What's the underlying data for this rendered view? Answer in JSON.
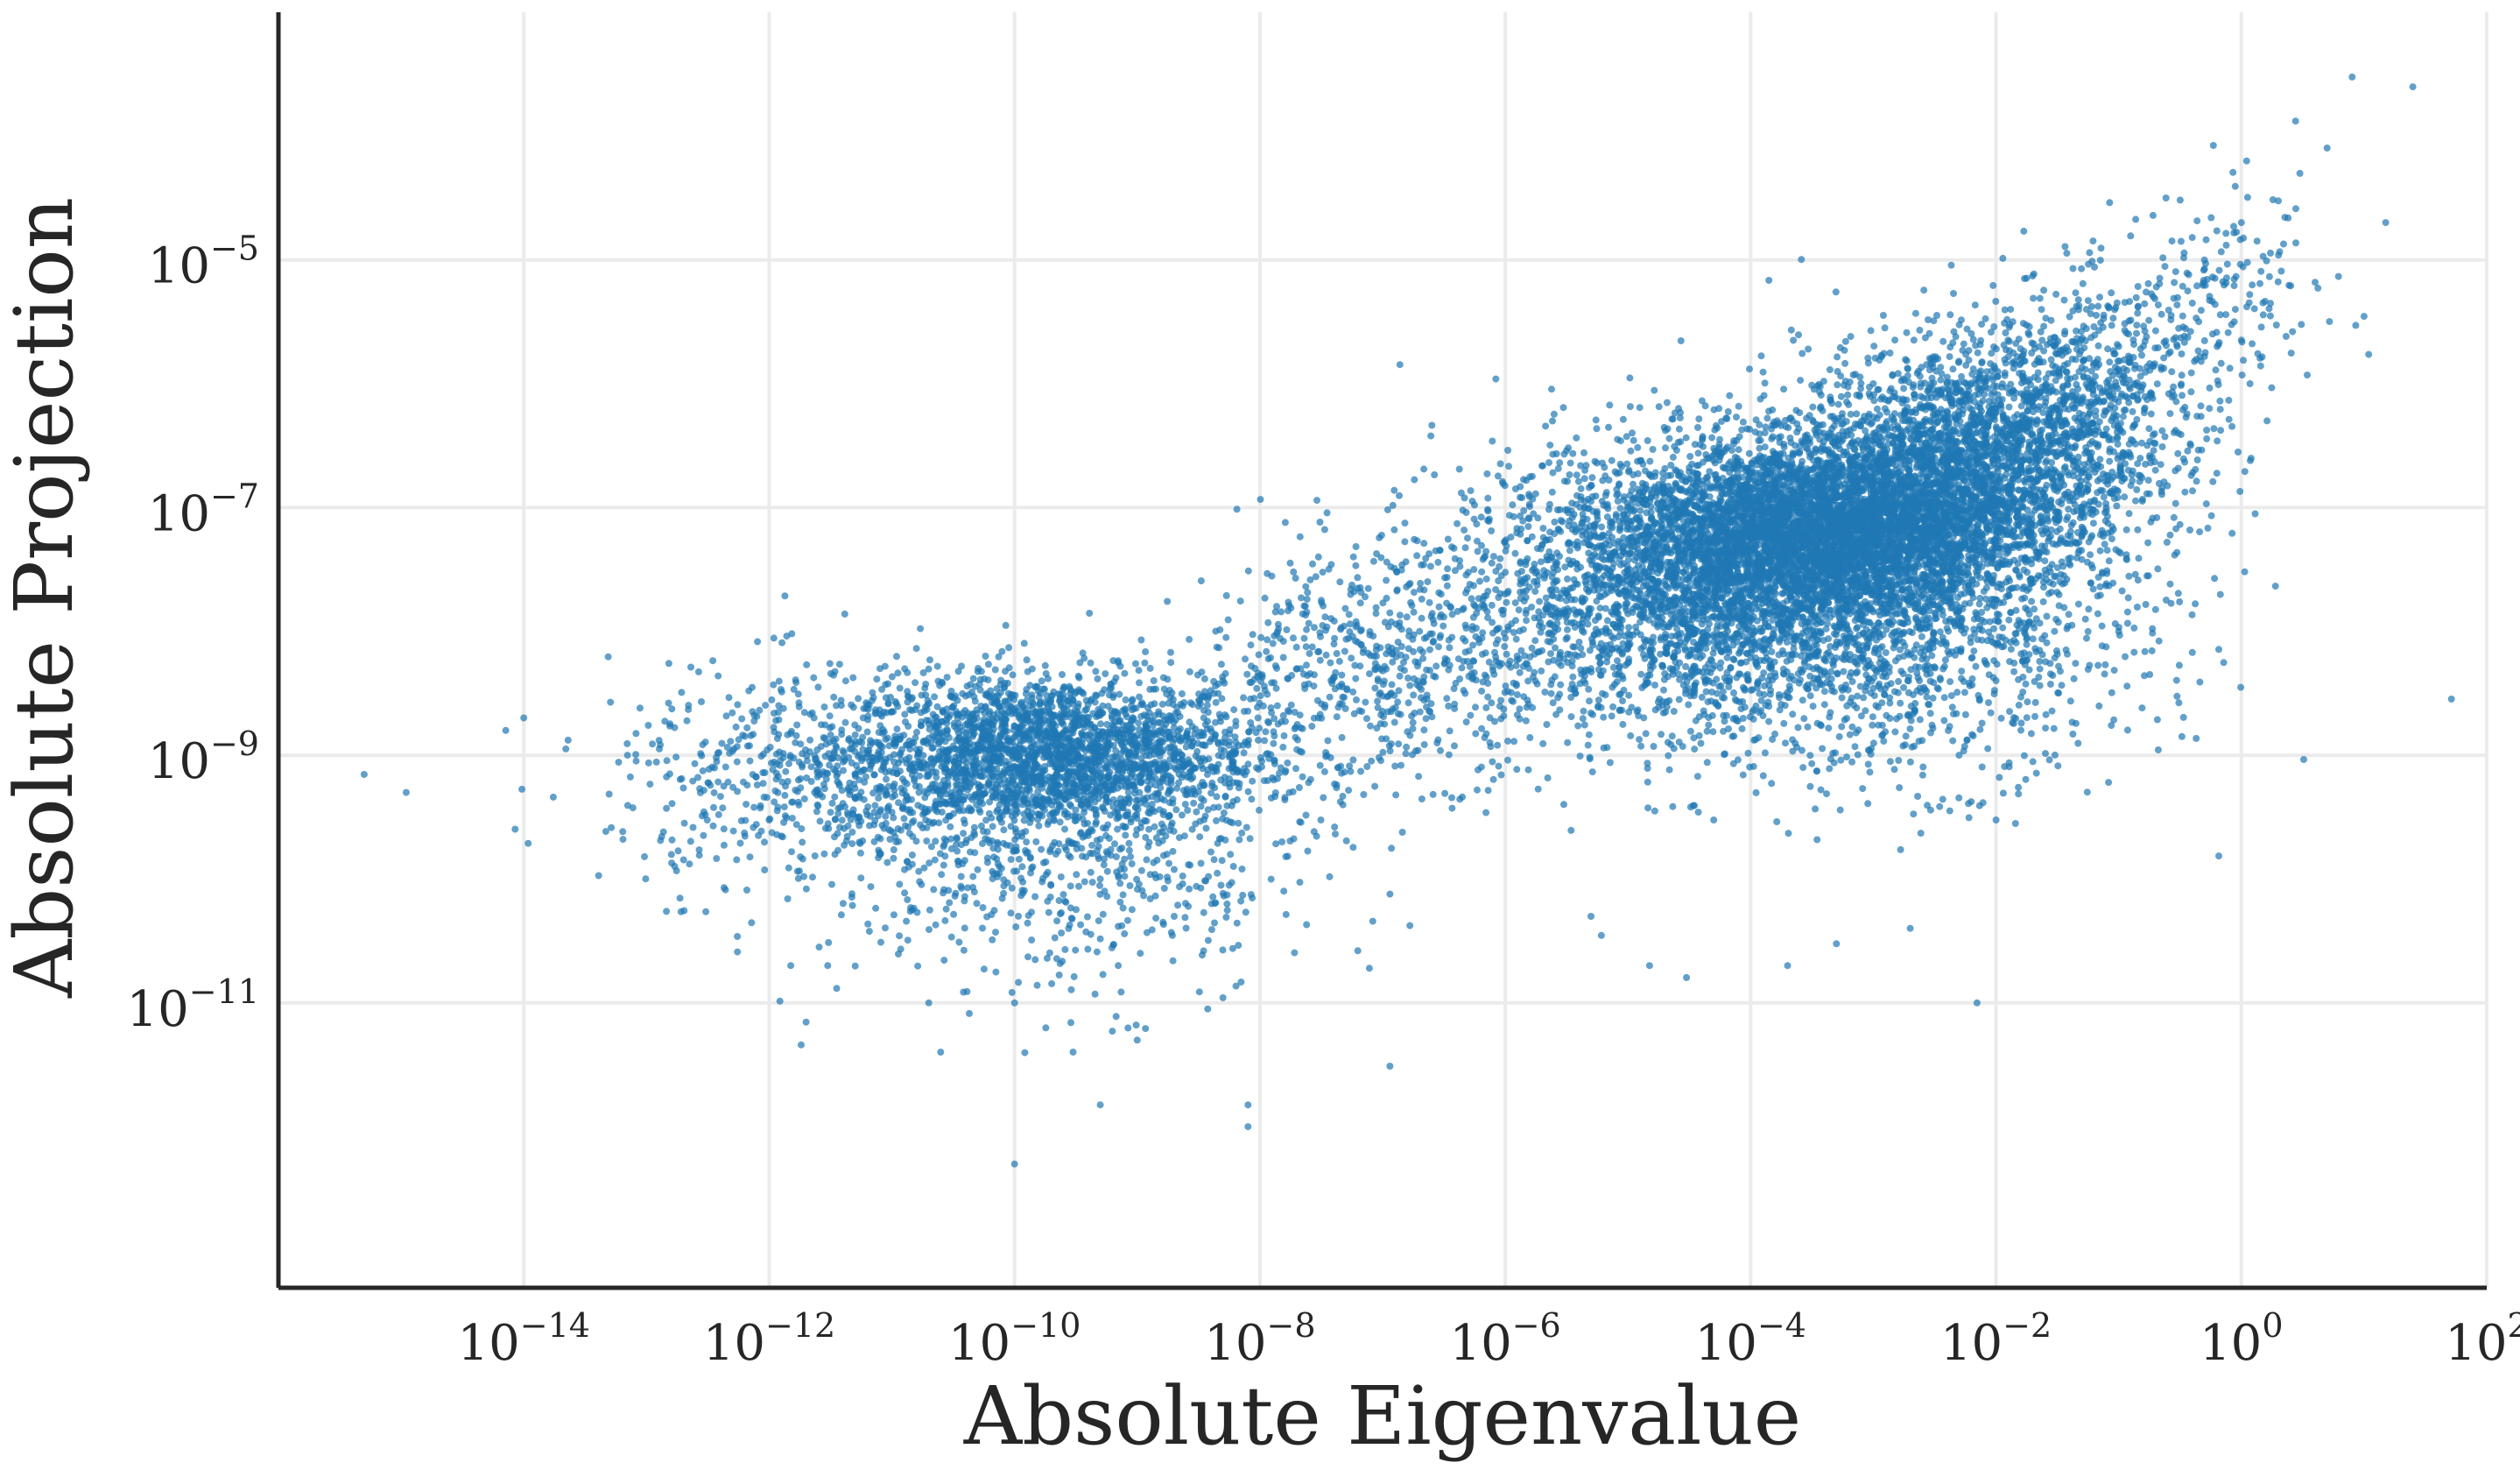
{
  "chart_data": {
    "type": "scatter",
    "title": "",
    "xlabel": "Absolute Eigenvalue",
    "ylabel": "Absolute Projection",
    "xscale": "log",
    "yscale": "log",
    "xlim": [
      1e-16,
      100.0
    ],
    "ylim": [
      5e-14,
      0.001
    ],
    "grid": true,
    "legend": "none",
    "marker_color": "#1f77b4",
    "x_ticks": [
      {
        "base": "10",
        "exp": "−14",
        "value": 1e-14
      },
      {
        "base": "10",
        "exp": "−12",
        "value": 1e-12
      },
      {
        "base": "10",
        "exp": "−10",
        "value": 1e-10
      },
      {
        "base": "10",
        "exp": "−8",
        "value": 1e-08
      },
      {
        "base": "10",
        "exp": "−6",
        "value": 1e-06
      },
      {
        "base": "10",
        "exp": "−4",
        "value": 0.0001
      },
      {
        "base": "10",
        "exp": "−2",
        "value": 0.01
      },
      {
        "base": "10",
        "exp": "0",
        "value": 1
      },
      {
        "base": "10",
        "exp": "2",
        "value": 100
      }
    ],
    "y_ticks": [
      {
        "base": "10",
        "exp": "−5",
        "value": 1e-05
      },
      {
        "base": "10",
        "exp": "−7",
        "value": 1e-07
      },
      {
        "base": "10",
        "exp": "−9",
        "value": 1e-09
      },
      {
        "base": "10",
        "exp": "−11",
        "value": 1e-11
      }
    ],
    "points": [
      [
        5e-16,
        7e-10
      ],
      [
        1.1e-15,
        5e-10
      ],
      [
        1e-14,
        2e-09
      ],
      [
        7e-14,
        1e-09
      ],
      [
        5e-13,
        2.2e-09
      ],
      [
        1.5e-12,
        1.5e-09
      ],
      [
        1e-12,
        3e-10
      ],
      [
        3e-11,
        3e-09
      ],
      [
        4e-11,
        3e-09
      ],
      [
        8e-11,
        2.5e-09
      ],
      [
        1.2e-10,
        8e-09
      ],
      [
        2e-10,
        3e-09
      ],
      [
        3e-10,
        2.8e-09
      ],
      [
        5e-09,
        4e-09
      ],
      [
        2e-08,
        5e-09
      ],
      [
        1.5e-10,
        2e-10
      ],
      [
        5e-10,
        1e-10
      ],
      [
        7e-10,
        2e-11
      ],
      [
        1e-10,
        1e-11
      ],
      [
        2e-11,
        1e-11
      ],
      [
        3e-12,
        2e-11
      ],
      [
        1.5e-12,
        2e-11
      ],
      [
        2e-12,
        7e-12
      ],
      [
        2.5e-11,
        4e-12
      ],
      [
        1e-10,
        5e-13
      ],
      [
        5e-10,
        1.5e-12
      ],
      [
        3e-10,
        4e-12
      ],
      [
        8e-09,
        1.5e-12
      ],
      [
        8e-09,
        1e-12
      ],
      [
        1e-09,
        5e-12
      ],
      [
        5e-09,
        1.1e-11
      ],
      [
        2e-09,
        5e-11
      ],
      [
        3e-08,
        2e-09
      ],
      [
        1e-07,
        3e-09
      ],
      [
        2e-07,
        1e-08
      ],
      [
        3e-07,
        2e-08
      ],
      [
        5e-07,
        3e-08
      ],
      [
        1e-06,
        3e-08
      ],
      [
        2e-06,
        5e-08
      ],
      [
        5e-06,
        5e-09
      ],
      [
        3e-06,
        4e-10
      ],
      [
        5e-06,
        5e-11
      ],
      [
        1.5e-05,
        2e-11
      ],
      [
        3e-05,
        1.6e-11
      ],
      [
        5e-05,
        3e-10
      ],
      [
        0.0002,
        2e-11
      ],
      [
        0.0005,
        3e-11
      ],
      [
        0.002,
        4e-11
      ],
      [
        0.007,
        1e-11
      ],
      [
        0.01,
        3e-10
      ],
      [
        0.005,
        1e-09
      ],
      [
        0.01,
        4e-09
      ],
      [
        0.03,
        1e-08
      ],
      [
        0.1,
        1e-08
      ],
      [
        0.2,
        1.5e-08
      ],
      [
        0.3,
        2e-06
      ],
      [
        0.5,
        1e-05
      ],
      [
        1,
        2e-05
      ],
      [
        2,
        3e-05
      ],
      [
        3,
        5e-05
      ],
      [
        5,
        8e-05
      ],
      [
        8,
        0.0003
      ],
      [
        1.5,
        4.5e-06
      ],
      [
        1.2,
        2.5e-07
      ],
      [
        10,
        3.5e-06
      ],
      [
        15,
        2e-05
      ],
      [
        25,
        0.00025
      ],
      [
        0.07,
        5e-06
      ],
      [
        0.1,
        2e-06
      ],
      [
        0.15,
        2.5e-07
      ],
      [
        0.25,
        1.5e-07
      ],
      [
        0.03,
        1.5e-07
      ],
      [
        0.001,
        1e-06
      ],
      [
        0.0005,
        5e-07
      ],
      [
        5e-05,
        3e-07
      ]
    ],
    "clusters": [
      {
        "x_log_center": -9.7,
        "y_log_center": -9.0,
        "x_log_spread": 0.85,
        "y_log_spread": 0.32,
        "count": 2500
      },
      {
        "x_log_center": -11.5,
        "y_log_center": -9.2,
        "x_log_spread": 0.9,
        "y_log_spread": 0.45,
        "count": 600
      },
      {
        "x_log_center": -9.5,
        "y_log_center": -10.0,
        "x_log_spread": 1.0,
        "y_log_spread": 0.5,
        "count": 500
      },
      {
        "x_log_center": -7.0,
        "y_log_center": -8.3,
        "x_log_spread": 0.8,
        "y_log_spread": 0.45,
        "count": 600
      },
      {
        "x_log_center": -4.5,
        "y_log_center": -7.6,
        "x_log_spread": 1.0,
        "y_log_spread": 0.55,
        "count": 2400
      },
      {
        "x_log_center": -3.4,
        "y_log_center": -7.2,
        "x_log_spread": 0.8,
        "y_log_spread": 0.35,
        "count": 4200
      },
      {
        "x_log_center": -2.2,
        "y_log_center": -6.6,
        "x_log_spread": 0.7,
        "y_log_spread": 0.45,
        "count": 2400
      },
      {
        "x_log_center": -3.0,
        "y_log_center": -8.0,
        "x_log_spread": 1.1,
        "y_log_spread": 0.6,
        "count": 1500
      },
      {
        "x_log_center": -1.1,
        "y_log_center": -5.9,
        "x_log_spread": 0.6,
        "y_log_spread": 0.4,
        "count": 500
      },
      {
        "x_log_center": -0.1,
        "y_log_center": -5.2,
        "x_log_spread": 0.45,
        "y_log_spread": 0.4,
        "count": 120
      }
    ]
  }
}
